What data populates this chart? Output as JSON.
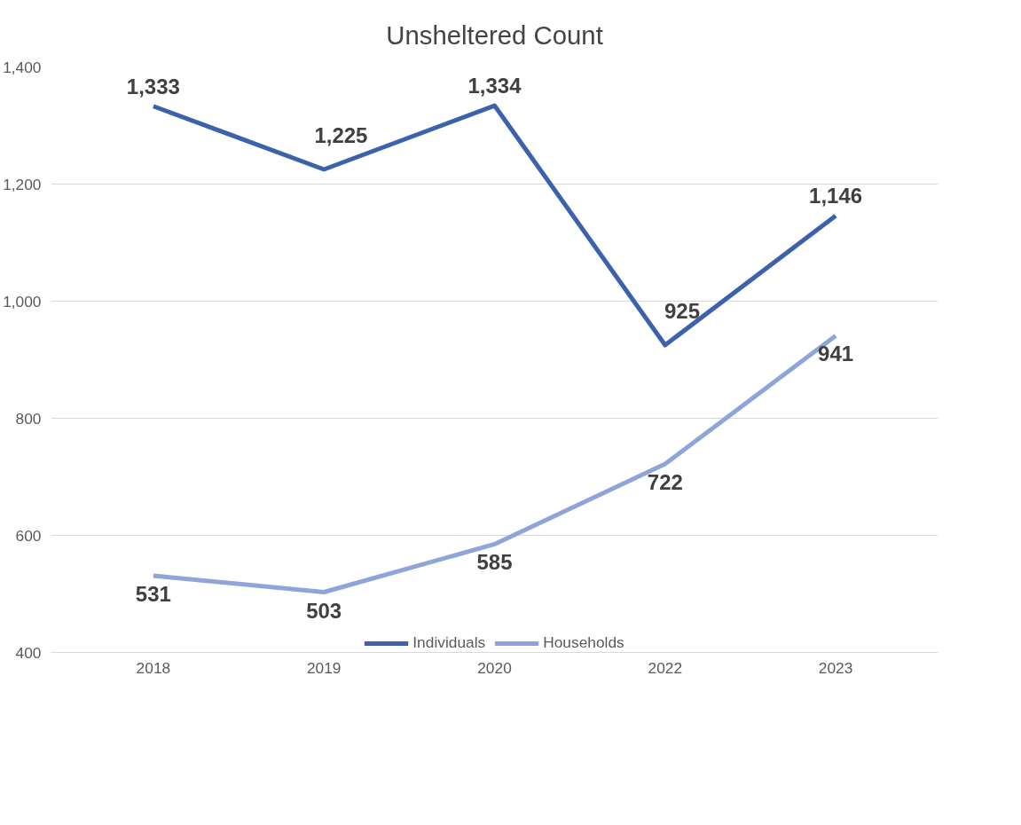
{
  "chart_data": {
    "type": "line",
    "title": "Unsheltered Count",
    "categories": [
      "2018",
      "2019",
      "2020",
      "2022",
      "2023"
    ],
    "series": [
      {
        "name": "Individuals",
        "color": "#3d62ad",
        "values": [
          1333,
          1225,
          1334,
          925,
          1146
        ],
        "value_labels": [
          "1,333",
          "1,225",
          "1,334",
          "925",
          "1,146"
        ]
      },
      {
        "name": "Households",
        "color": "#8fa4d8",
        "values": [
          531,
          503,
          585,
          722,
          941
        ],
        "value_labels": [
          "531",
          "503",
          "585",
          "722",
          "941"
        ]
      }
    ],
    "ylim": [
      400,
      1400
    ],
    "yticks": [
      {
        "value": 400,
        "label": "400"
      },
      {
        "value": 600,
        "label": "600"
      },
      {
        "value": 800,
        "label": "800"
      },
      {
        "value": 1000,
        "label": "1,000"
      },
      {
        "value": 1200,
        "label": "1,200"
      },
      {
        "value": 1400,
        "label": "1,400"
      }
    ],
    "grid": "y",
    "legend": "bottom",
    "marker": "none",
    "line_style": "solid"
  }
}
